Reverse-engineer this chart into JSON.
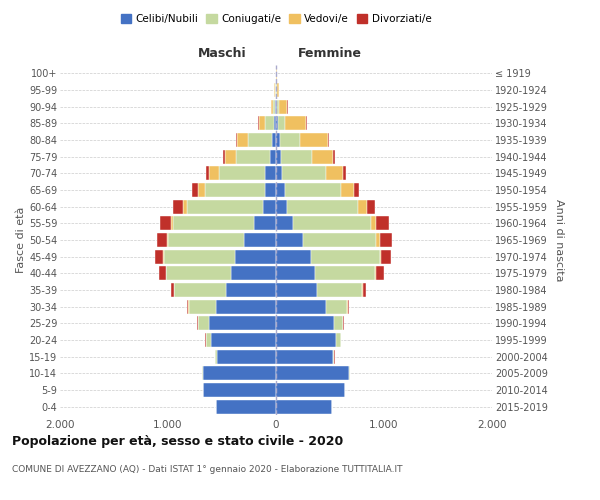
{
  "age_groups": [
    "0-4",
    "5-9",
    "10-14",
    "15-19",
    "20-24",
    "25-29",
    "30-34",
    "35-39",
    "40-44",
    "45-49",
    "50-54",
    "55-59",
    "60-64",
    "65-69",
    "70-74",
    "75-79",
    "80-84",
    "85-89",
    "90-94",
    "95-99",
    "100+"
  ],
  "birth_years": [
    "2015-2019",
    "2010-2014",
    "2005-2009",
    "2000-2004",
    "1995-1999",
    "1990-1994",
    "1985-1989",
    "1980-1984",
    "1975-1979",
    "1970-1974",
    "1965-1969",
    "1960-1964",
    "1955-1959",
    "1950-1954",
    "1945-1949",
    "1940-1944",
    "1935-1939",
    "1930-1934",
    "1925-1929",
    "1920-1924",
    "≤ 1919"
  ],
  "colors": {
    "celibi": "#4472c4",
    "coniugati": "#c5d9a0",
    "vedovi": "#f0c060",
    "divorziati": "#c0302a"
  },
  "maschi": {
    "celibi": [
      560,
      680,
      680,
      550,
      600,
      620,
      560,
      460,
      420,
      380,
      300,
      200,
      120,
      100,
      100,
      60,
      40,
      20,
      8,
      4,
      2
    ],
    "coniugati": [
      0,
      0,
      5,
      15,
      50,
      100,
      250,
      480,
      600,
      660,
      700,
      750,
      700,
      560,
      430,
      310,
      220,
      80,
      20,
      5,
      0
    ],
    "vedovi": [
      0,
      0,
      0,
      1,
      2,
      2,
      2,
      2,
      3,
      5,
      10,
      20,
      40,
      60,
      90,
      100,
      100,
      60,
      20,
      5,
      0
    ],
    "divorziati": [
      0,
      0,
      0,
      1,
      3,
      5,
      10,
      30,
      60,
      80,
      90,
      100,
      90,
      60,
      30,
      20,
      8,
      5,
      2,
      0,
      0
    ]
  },
  "femmine": {
    "celibi": [
      520,
      640,
      680,
      530,
      560,
      540,
      460,
      380,
      360,
      320,
      250,
      160,
      100,
      80,
      60,
      50,
      40,
      20,
      10,
      4,
      2
    ],
    "coniugati": [
      0,
      0,
      3,
      10,
      40,
      80,
      200,
      420,
      560,
      640,
      680,
      720,
      660,
      520,
      400,
      280,
      180,
      60,
      15,
      5,
      0
    ],
    "vedovi": [
      0,
      0,
      0,
      1,
      2,
      2,
      3,
      5,
      8,
      15,
      30,
      50,
      80,
      120,
      160,
      200,
      260,
      200,
      80,
      20,
      3
    ],
    "divorziati": [
      0,
      0,
      0,
      1,
      2,
      5,
      10,
      30,
      70,
      90,
      110,
      120,
      80,
      50,
      30,
      20,
      10,
      5,
      2,
      0,
      0
    ]
  },
  "xlim": 2000,
  "title": "Popolazione per età, sesso e stato civile - 2020",
  "subtitle": "COMUNE DI AVEZZANO (AQ) - Dati ISTAT 1° gennaio 2020 - Elaborazione TUTTITALIA.IT",
  "xlabel_left": "Maschi",
  "xlabel_right": "Femmine",
  "ylabel": "Fasce di età",
  "ylabel_right": "Anni di nascita",
  "legend_labels": [
    "Celibi/Nubili",
    "Coniugati/e",
    "Vedovi/e",
    "Divorziati/e"
  ]
}
